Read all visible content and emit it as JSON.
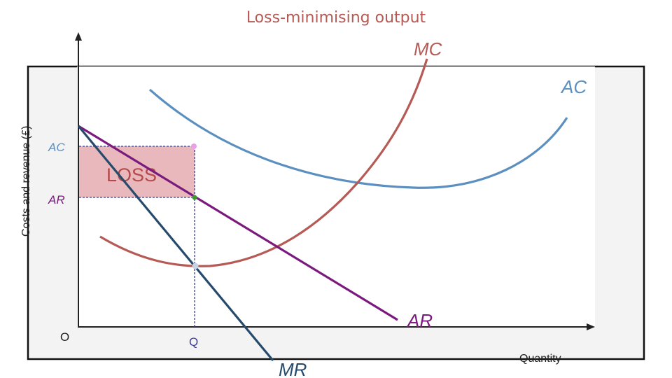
{
  "title": "Loss-minimising output",
  "axes": {
    "ylabel": "Costs and revenue (£)",
    "xlabel": "Quantity",
    "origin": "O"
  },
  "curves": {
    "mc": {
      "label": "MC",
      "color": "#b55a55"
    },
    "ac": {
      "label": "AC",
      "color": "#5a8fbf"
    },
    "ar": {
      "label": "AR",
      "color": "#7b1a7e"
    },
    "mr": {
      "label": "MR",
      "color": "#254a6b"
    }
  },
  "ticks": {
    "ac_level": "AC",
    "ar_level": "AR",
    "quantity": "Q"
  },
  "loss_area": {
    "label": "LOSS",
    "fill": "#e6b0b5",
    "text_color": "#b54a4a"
  },
  "colors": {
    "title": "#b55a55",
    "axis": "#222222",
    "dashed": "#3b3ba0",
    "panel": "#f3f3f3"
  }
}
